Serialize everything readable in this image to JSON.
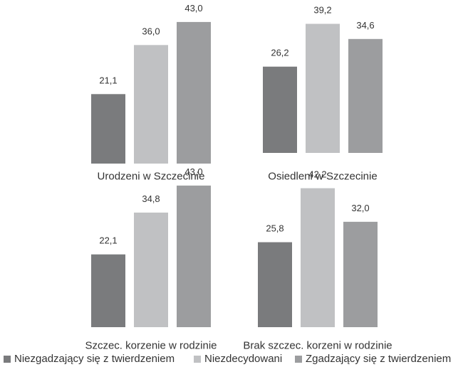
{
  "chart_data": {
    "type": "bar",
    "ylim": [
      0,
      45
    ],
    "grid": false,
    "legend_position": "bottom",
    "series": [
      {
        "name": "Niezgadzający się z twierdzeniem",
        "color": "#7a7b7d"
      },
      {
        "name": "Niezdecydowani",
        "color": "#c0c1c3"
      },
      {
        "name": "Zgadzający się z twierdzeniem",
        "color": "#9c9d9f"
      }
    ],
    "panels": [
      {
        "label": "Urodzeni w Szczecinie",
        "values": [
          21.1,
          36.0,
          43.0
        ],
        "value_labels": [
          "21,1",
          "36,0",
          "43,0"
        ]
      },
      {
        "label": "Osiedleni w Szczecinie",
        "values": [
          26.2,
          39.2,
          34.6
        ],
        "value_labels": [
          "26,2",
          "39,2",
          "34,6"
        ]
      },
      {
        "label": "Szczec. korzenie w rodzinie",
        "values": [
          22.1,
          34.8,
          43.0
        ],
        "value_labels": [
          "22,1",
          "34,8",
          "43,0"
        ]
      },
      {
        "label": "Brak szczec. korzeni w rodzinie",
        "values": [
          25.8,
          42.2,
          32.0
        ],
        "value_labels": [
          "25,8",
          "42,2",
          "32,0"
        ]
      }
    ]
  }
}
